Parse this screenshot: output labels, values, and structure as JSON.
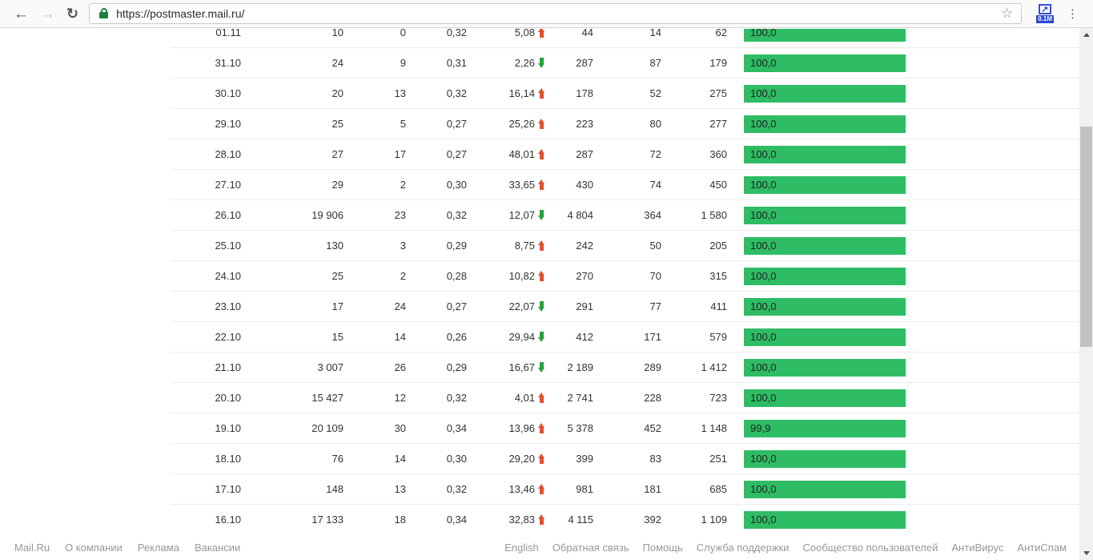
{
  "browser": {
    "url": "https://postmaster.mail.ru/",
    "extension_badge": "0.1M"
  },
  "colors": {
    "bar_green": "#2ebc64",
    "trend_up": "#e0512f",
    "trend_down": "#27a23c"
  },
  "table": {
    "rows": [
      {
        "date": "01.11",
        "v1": "10",
        "v2": "0",
        "v3": "0,32",
        "trend_value": "5,08",
        "trend_direction": "up",
        "v4": "44",
        "v5": "14",
        "v6": "62",
        "bar_label": "100,0",
        "bar_percent": 100
      },
      {
        "date": "31.10",
        "v1": "24",
        "v2": "9",
        "v3": "0,31",
        "trend_value": "2,26",
        "trend_direction": "down",
        "v4": "287",
        "v5": "87",
        "v6": "179",
        "bar_label": "100,0",
        "bar_percent": 100
      },
      {
        "date": "30.10",
        "v1": "20",
        "v2": "13",
        "v3": "0,32",
        "trend_value": "16,14",
        "trend_direction": "up",
        "v4": "178",
        "v5": "52",
        "v6": "275",
        "bar_label": "100,0",
        "bar_percent": 100
      },
      {
        "date": "29.10",
        "v1": "25",
        "v2": "5",
        "v3": "0,27",
        "trend_value": "25,26",
        "trend_direction": "up",
        "v4": "223",
        "v5": "80",
        "v6": "277",
        "bar_label": "100,0",
        "bar_percent": 100
      },
      {
        "date": "28.10",
        "v1": "27",
        "v2": "17",
        "v3": "0,27",
        "trend_value": "48,01",
        "trend_direction": "up",
        "v4": "287",
        "v5": "72",
        "v6": "360",
        "bar_label": "100,0",
        "bar_percent": 100
      },
      {
        "date": "27.10",
        "v1": "29",
        "v2": "2",
        "v3": "0,30",
        "trend_value": "33,65",
        "trend_direction": "up",
        "v4": "430",
        "v5": "74",
        "v6": "450",
        "bar_label": "100,0",
        "bar_percent": 100
      },
      {
        "date": "26.10",
        "v1": "19 906",
        "v2": "23",
        "v3": "0,32",
        "trend_value": "12,07",
        "trend_direction": "down",
        "v4": "4 804",
        "v5": "364",
        "v6": "1 580",
        "bar_label": "100,0",
        "bar_percent": 100
      },
      {
        "date": "25.10",
        "v1": "130",
        "v2": "3",
        "v3": "0,29",
        "trend_value": "8,75",
        "trend_direction": "up",
        "v4": "242",
        "v5": "50",
        "v6": "205",
        "bar_label": "100,0",
        "bar_percent": 100
      },
      {
        "date": "24.10",
        "v1": "25",
        "v2": "2",
        "v3": "0,28",
        "trend_value": "10,82",
        "trend_direction": "up",
        "v4": "270",
        "v5": "70",
        "v6": "315",
        "bar_label": "100,0",
        "bar_percent": 100
      },
      {
        "date": "23.10",
        "v1": "17",
        "v2": "24",
        "v3": "0,27",
        "trend_value": "22,07",
        "trend_direction": "down",
        "v4": "291",
        "v5": "77",
        "v6": "411",
        "bar_label": "100,0",
        "bar_percent": 100
      },
      {
        "date": "22.10",
        "v1": "15",
        "v2": "14",
        "v3": "0,26",
        "trend_value": "29,94",
        "trend_direction": "down",
        "v4": "412",
        "v5": "171",
        "v6": "579",
        "bar_label": "100,0",
        "bar_percent": 100
      },
      {
        "date": "21.10",
        "v1": "3 007",
        "v2": "26",
        "v3": "0,29",
        "trend_value": "16,67",
        "trend_direction": "down",
        "v4": "2 189",
        "v5": "289",
        "v6": "1 412",
        "bar_label": "100,0",
        "bar_percent": 100
      },
      {
        "date": "20.10",
        "v1": "15 427",
        "v2": "12",
        "v3": "0,32",
        "trend_value": "4,01",
        "trend_direction": "up",
        "v4": "2 741",
        "v5": "228",
        "v6": "723",
        "bar_label": "100,0",
        "bar_percent": 100
      },
      {
        "date": "19.10",
        "v1": "20 109",
        "v2": "30",
        "v3": "0,34",
        "trend_value": "13,96",
        "trend_direction": "up",
        "v4": "5 378",
        "v5": "452",
        "v6": "1 148",
        "bar_label": "99,9",
        "bar_percent": 99.9
      },
      {
        "date": "18.10",
        "v1": "76",
        "v2": "14",
        "v3": "0,30",
        "trend_value": "29,20",
        "trend_direction": "up",
        "v4": "399",
        "v5": "83",
        "v6": "251",
        "bar_label": "100,0",
        "bar_percent": 100
      },
      {
        "date": "17.10",
        "v1": "148",
        "v2": "13",
        "v3": "0,32",
        "trend_value": "13,46",
        "trend_direction": "up",
        "v4": "981",
        "v5": "181",
        "v6": "685",
        "bar_label": "100,0",
        "bar_percent": 100
      },
      {
        "date": "16.10",
        "v1": "17 133",
        "v2": "18",
        "v3": "0,34",
        "trend_value": "32,83",
        "trend_direction": "up",
        "v4": "4 115",
        "v5": "392",
        "v6": "1 109",
        "bar_label": "100,0",
        "bar_percent": 100
      }
    ]
  },
  "footer": {
    "left_links": [
      "Mail.Ru",
      "О компании",
      "Реклама",
      "Вакансии"
    ],
    "right_links": [
      "English",
      "Обратная связь",
      "Помощь",
      "Служба поддержки",
      "Сообщество пользователей",
      "АнтиВирус",
      "АнтиСпам"
    ]
  }
}
